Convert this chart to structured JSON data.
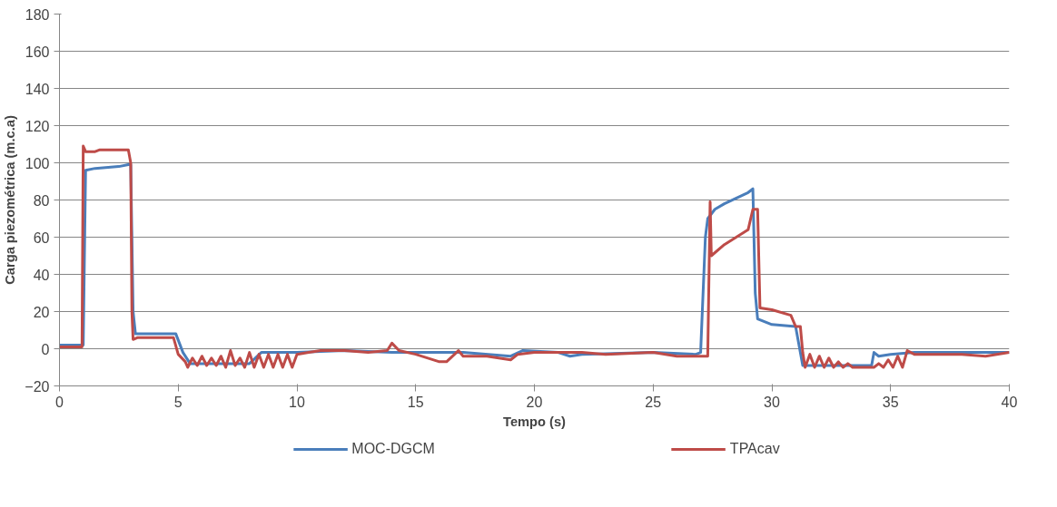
{
  "chart_data": {
    "type": "line",
    "xlabel": "Tempo (s)",
    "ylabel": "Carga piezométrica (m.c.a)",
    "xlim": [
      0,
      40
    ],
    "xticks": [
      0,
      5,
      10,
      15,
      20,
      25,
      30,
      35,
      40
    ],
    "ylim": [
      -20,
      180
    ],
    "yticks": [
      -20,
      0,
      20,
      40,
      60,
      80,
      100,
      120,
      140,
      160,
      180
    ],
    "grid": "y",
    "legend": "bottom",
    "marker": "none",
    "line_style": "solid",
    "series": [
      {
        "name": "MOC-DGCM",
        "color": "#4a7ebb",
        "x": [
          0,
          1.0,
          1.1,
          1.5,
          2.5,
          2.9,
          3.0,
          3.1,
          3.2,
          4.9,
          5.2,
          5.5,
          7,
          8,
          8.5,
          10,
          12,
          14,
          16,
          17,
          19,
          19.5,
          21,
          21.5,
          22,
          25,
          26.8,
          27.0,
          27.2,
          27.3,
          27.6,
          28,
          29,
          29.2,
          29.3,
          29.4,
          30,
          31,
          31.3,
          34.2,
          34.3,
          34.5,
          35,
          36,
          40
        ],
        "values": [
          2,
          2,
          96,
          97,
          98,
          99,
          99,
          20,
          8,
          8,
          -2,
          -8,
          -8,
          -8,
          -2,
          -2,
          -1,
          -2,
          -2,
          -2,
          -4,
          -1,
          -2,
          -4,
          -3,
          -2,
          -3,
          -2,
          60,
          70,
          75,
          78,
          84,
          86,
          30,
          16,
          13,
          12,
          -9,
          -9,
          -2,
          -4,
          -3,
          -2,
          -2
        ]
      },
      {
        "name": "TPAcav",
        "color": "#be4b48",
        "x": [
          0,
          0.95,
          1.0,
          1.1,
          1.5,
          1.7,
          2.9,
          3.0,
          3.05,
          3.1,
          3.3,
          4.8,
          5.0,
          5.3,
          5.4,
          5.6,
          5.8,
          6.0,
          6.2,
          6.4,
          6.6,
          6.8,
          7.0,
          7.2,
          7.4,
          7.6,
          7.8,
          8.0,
          8.2,
          8.4,
          8.6,
          8.8,
          9.0,
          9.2,
          9.4,
          9.6,
          9.8,
          10.0,
          10.5,
          11,
          12,
          13,
          13.8,
          14,
          14.3,
          15,
          16,
          16.3,
          16.8,
          17,
          18,
          19,
          19.3,
          20,
          22,
          23,
          25,
          26,
          27.3,
          27.4,
          27.45,
          28,
          29,
          29.2,
          29.4,
          29.5,
          30,
          30.8,
          31,
          31.2,
          31.3,
          31.4,
          31.6,
          31.8,
          32.0,
          32.2,
          32.4,
          32.6,
          32.8,
          33.0,
          33.2,
          33.4,
          34.3,
          34.5,
          34.7,
          34.9,
          35.1,
          35.3,
          35.5,
          35.7,
          36,
          38,
          39,
          40
        ],
        "values": [
          1,
          1,
          109,
          106,
          106,
          107,
          107,
          100,
          20,
          5,
          6,
          6,
          -3,
          -7,
          -10,
          -5,
          -9,
          -4,
          -9,
          -5,
          -9,
          -4,
          -10,
          -1,
          -9,
          -5,
          -10,
          -2,
          -10,
          -3,
          -10,
          -3,
          -10,
          -3,
          -10,
          -3,
          -10,
          -3,
          -2,
          -1,
          -1,
          -2,
          -1,
          3,
          -1,
          -3,
          -7,
          -7,
          -1,
          -4,
          -4,
          -6,
          -3,
          -2,
          -2,
          -3,
          -2,
          -4,
          -4,
          79,
          50,
          56,
          64,
          75,
          75,
          22,
          21,
          18,
          12,
          12,
          -2,
          -10,
          -3,
          -10,
          -4,
          -10,
          -5,
          -10,
          -7,
          -10,
          -8,
          -10,
          -10,
          -8,
          -10,
          -6,
          -10,
          -4,
          -10,
          -1,
          -3,
          -3,
          -4,
          -2
        ]
      }
    ]
  }
}
